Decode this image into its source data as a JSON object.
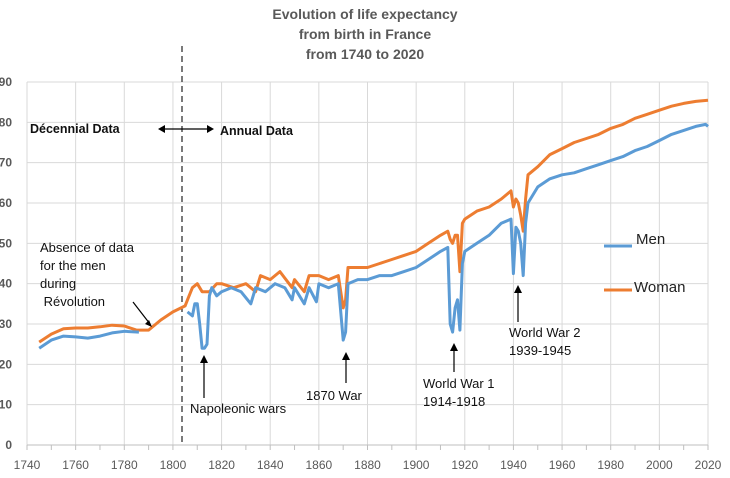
{
  "chart_data": {
    "type": "line",
    "title": "Evolution of life expectancy from birth in France from 1740 to 2020",
    "title_lines": [
      "Evolution of life expectancy",
      "from birth in France",
      "from 1740 to 2020"
    ],
    "xlim": [
      1740,
      2020
    ],
    "ylim": [
      0,
      90
    ],
    "x_ticks": [
      "1740",
      "1760",
      "1780",
      "1800",
      "1820",
      "1840",
      "1860",
      "1880",
      "1900",
      "1920",
      "1940",
      "1960",
      "1980",
      "2000",
      "2020"
    ],
    "x_ticks_all": [
      1740,
      1750,
      1760,
      1770,
      1780,
      1790,
      1800,
      1810,
      1820,
      1830,
      1840,
      1850,
      1860,
      1870,
      1880,
      1890,
      1900,
      1910,
      1920,
      1930,
      1940,
      1950,
      1960,
      1970,
      1980,
      1990,
      2000,
      2010,
      2020
    ],
    "y_ticks": [
      "0",
      "10",
      "20",
      "30",
      "40",
      "50",
      "60",
      "70",
      "80",
      "90"
    ],
    "grid": true,
    "legend_position": "right",
    "colors": {
      "Men": "#5b9bd5",
      "Woman": "#ed7d31"
    },
    "series": [
      {
        "name": "Men",
        "points": [
          [
            1745,
            24
          ],
          [
            1750,
            26
          ],
          [
            1755,
            27
          ],
          [
            1760,
            26.8
          ],
          [
            1765,
            26.5
          ],
          [
            1770,
            27
          ],
          [
            1775,
            27.8
          ],
          [
            1780,
            28.2
          ],
          [
            1786,
            28
          ],
          [
            1790,
            null
          ],
          [
            1806,
            33
          ],
          [
            1808,
            32
          ],
          [
            1809,
            35
          ],
          [
            1810,
            35
          ],
          [
            1811,
            30
          ],
          [
            1812,
            24
          ],
          [
            1813,
            24
          ],
          [
            1814,
            25
          ],
          [
            1815,
            37
          ],
          [
            1816,
            39
          ],
          [
            1818,
            37
          ],
          [
            1820,
            38
          ],
          [
            1824,
            39
          ],
          [
            1828,
            38
          ],
          [
            1832,
            35
          ],
          [
            1834,
            39
          ],
          [
            1838,
            38
          ],
          [
            1842,
            40
          ],
          [
            1846,
            39
          ],
          [
            1849,
            36
          ],
          [
            1850,
            39
          ],
          [
            1854,
            35
          ],
          [
            1856,
            39
          ],
          [
            1859,
            35.5
          ],
          [
            1860,
            40
          ],
          [
            1864,
            39
          ],
          [
            1868,
            40
          ],
          [
            1870,
            26
          ],
          [
            1871,
            28
          ],
          [
            1872,
            40
          ],
          [
            1876,
            41
          ],
          [
            1880,
            41
          ],
          [
            1885,
            42
          ],
          [
            1890,
            42
          ],
          [
            1895,
            43
          ],
          [
            1900,
            44
          ],
          [
            1905,
            46
          ],
          [
            1910,
            48
          ],
          [
            1913,
            49
          ],
          [
            1914,
            30
          ],
          [
            1915,
            28
          ],
          [
            1916,
            34
          ],
          [
            1917,
            36
          ],
          [
            1918,
            28.5
          ],
          [
            1919,
            45
          ],
          [
            1920,
            48
          ],
          [
            1925,
            50
          ],
          [
            1930,
            52
          ],
          [
            1935,
            55
          ],
          [
            1939,
            56
          ],
          [
            1940,
            42.5
          ],
          [
            1941,
            54
          ],
          [
            1942,
            53
          ],
          [
            1943,
            50
          ],
          [
            1944,
            42
          ],
          [
            1945,
            55
          ],
          [
            1946,
            60
          ],
          [
            1950,
            64
          ],
          [
            1955,
            66
          ],
          [
            1960,
            67
          ],
          [
            1965,
            67.5
          ],
          [
            1970,
            68.5
          ],
          [
            1975,
            69.5
          ],
          [
            1980,
            70.5
          ],
          [
            1985,
            71.5
          ],
          [
            1990,
            73
          ],
          [
            1995,
            74
          ],
          [
            2000,
            75.5
          ],
          [
            2005,
            77
          ],
          [
            2010,
            78
          ],
          [
            2015,
            79
          ],
          [
            2019,
            79.5
          ],
          [
            2020,
            79
          ]
        ]
      },
      {
        "name": "Woman",
        "points": [
          [
            1745,
            25.5
          ],
          [
            1750,
            27.5
          ],
          [
            1755,
            28.8
          ],
          [
            1760,
            29
          ],
          [
            1765,
            29
          ],
          [
            1770,
            29.3
          ],
          [
            1775,
            29.7
          ],
          [
            1780,
            29.5
          ],
          [
            1785,
            28.5
          ],
          [
            1790,
            28.5
          ],
          [
            1795,
            31
          ],
          [
            1800,
            33
          ],
          [
            1805,
            34.5
          ],
          [
            1806,
            36
          ],
          [
            1808,
            39
          ],
          [
            1810,
            40
          ],
          [
            1812,
            38
          ],
          [
            1815,
            38
          ],
          [
            1818,
            40
          ],
          [
            1820,
            40
          ],
          [
            1825,
            39
          ],
          [
            1830,
            40
          ],
          [
            1834,
            38
          ],
          [
            1836,
            42
          ],
          [
            1840,
            41
          ],
          [
            1844,
            43
          ],
          [
            1849,
            39
          ],
          [
            1850,
            41
          ],
          [
            1854,
            38
          ],
          [
            1856,
            42
          ],
          [
            1860,
            42
          ],
          [
            1864,
            41
          ],
          [
            1868,
            42
          ],
          [
            1870,
            34
          ],
          [
            1871,
            36
          ],
          [
            1872,
            44
          ],
          [
            1876,
            44
          ],
          [
            1880,
            44
          ],
          [
            1885,
            45
          ],
          [
            1890,
            46
          ],
          [
            1895,
            47
          ],
          [
            1900,
            48
          ],
          [
            1905,
            50
          ],
          [
            1910,
            52
          ],
          [
            1913,
            53
          ],
          [
            1914,
            51
          ],
          [
            1915,
            50
          ],
          [
            1916,
            52
          ],
          [
            1917,
            52
          ],
          [
            1918,
            43
          ],
          [
            1919,
            55
          ],
          [
            1920,
            56
          ],
          [
            1925,
            58
          ],
          [
            1930,
            59
          ],
          [
            1935,
            61
          ],
          [
            1939,
            63
          ],
          [
            1940,
            59
          ],
          [
            1941,
            61
          ],
          [
            1942,
            60
          ],
          [
            1943,
            57
          ],
          [
            1944,
            53
          ],
          [
            1945,
            61
          ],
          [
            1946,
            67
          ],
          [
            1950,
            69
          ],
          [
            1955,
            72
          ],
          [
            1960,
            73.5
          ],
          [
            1965,
            75
          ],
          [
            1970,
            76
          ],
          [
            1975,
            77
          ],
          [
            1980,
            78.5
          ],
          [
            1985,
            79.5
          ],
          [
            1990,
            81
          ],
          [
            1995,
            82
          ],
          [
            2000,
            83
          ],
          [
            2005,
            84
          ],
          [
            2010,
            84.7
          ],
          [
            2015,
            85.2
          ],
          [
            2020,
            85.5
          ]
        ]
      }
    ],
    "annotations": {
      "decennial": "Décennial Data",
      "annual": "Annual Data",
      "absence": [
        "Absence of data",
        "for the men",
        "during",
        " Révolution"
      ],
      "napoleonic": "Napoleonic wars",
      "war1870": "1870 War",
      "ww1": [
        "World War 1",
        "1914-1918"
      ],
      "ww2": [
        "World War 2",
        "1939-1945"
      ]
    },
    "legend": [
      "Men",
      "Woman"
    ]
  }
}
